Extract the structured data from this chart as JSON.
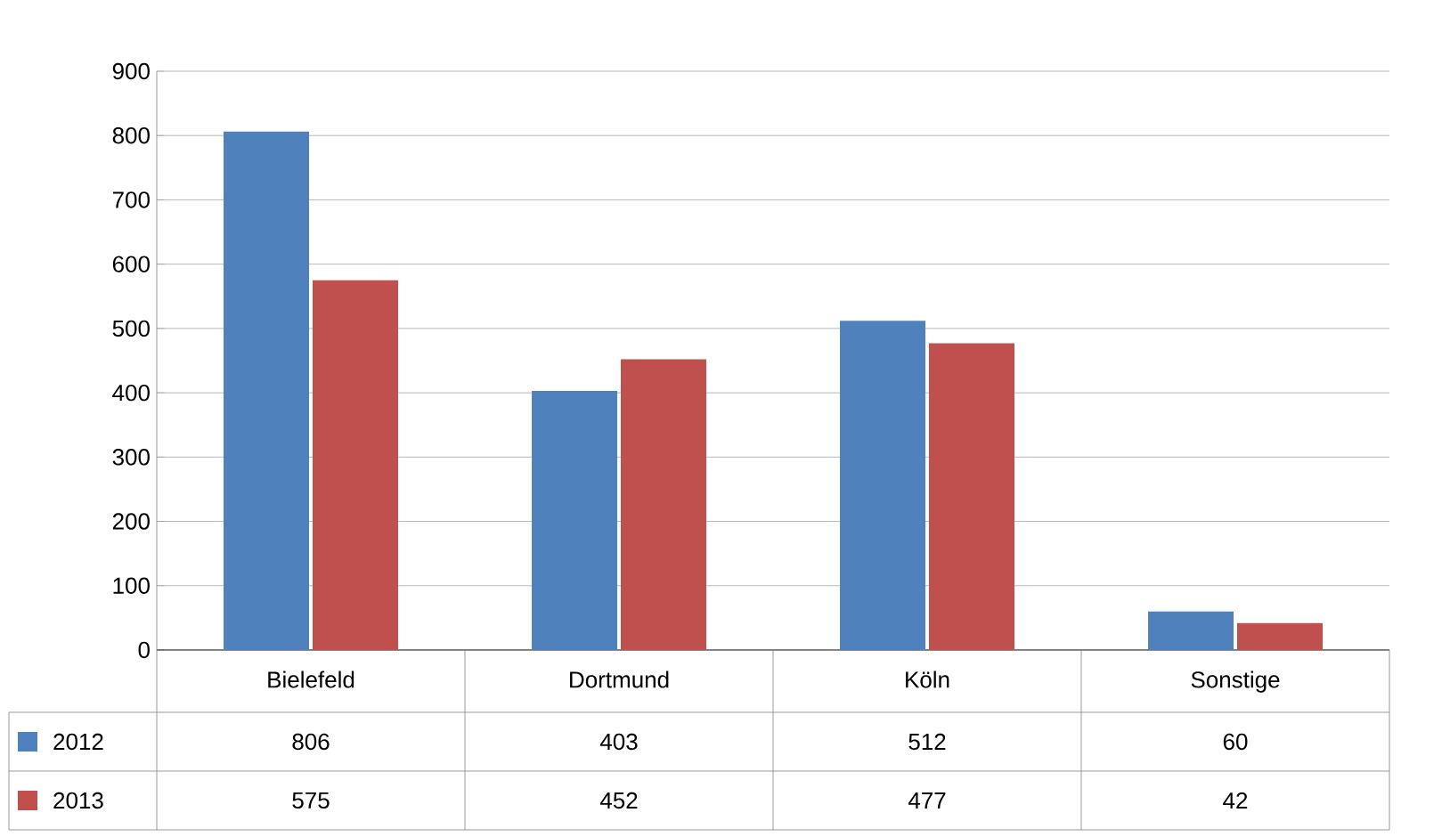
{
  "chart_data": {
    "type": "bar",
    "categories": [
      "Bielefeld",
      "Dortmund",
      "Köln",
      "Sonstige"
    ],
    "series": [
      {
        "name": "2012",
        "color": "#4f81bd",
        "values": [
          806,
          403,
          512,
          60
        ]
      },
      {
        "name": "2013",
        "color": "#c0504d",
        "values": [
          575,
          452,
          477,
          42
        ]
      }
    ],
    "ylim": [
      0,
      900
    ],
    "yticks": [
      0,
      100,
      200,
      300,
      400,
      500,
      600,
      700,
      800,
      900
    ],
    "grid": "y",
    "legend": "bottom",
    "data_labels": true
  }
}
